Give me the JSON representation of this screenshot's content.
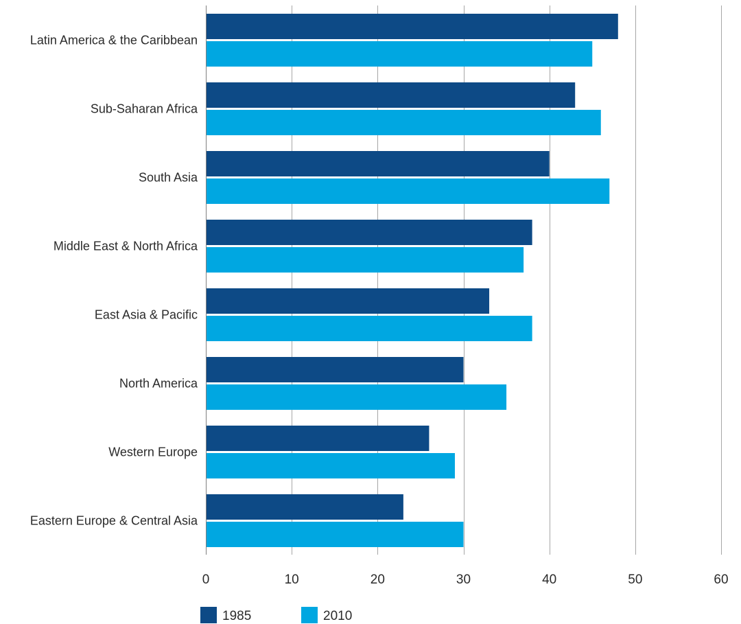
{
  "chart_data": {
    "type": "bar",
    "orientation": "horizontal",
    "categories": [
      "Latin America & the Caribbean",
      "Sub-Saharan Africa",
      "South Asia",
      "Middle East & North Africa",
      "East Asia & Pacific",
      "North America",
      "Western Europe",
      "Eastern Europe & Central Asia"
    ],
    "series": [
      {
        "name": "1985",
        "color": "#0d4a86",
        "values": [
          48,
          43,
          40,
          38,
          33,
          30,
          26,
          23
        ]
      },
      {
        "name": "2010",
        "color": "#00a7e1",
        "values": [
          45,
          46,
          47,
          37,
          38,
          35,
          29,
          30
        ]
      }
    ],
    "xlim": [
      0,
      60
    ],
    "xticks": [
      0,
      10,
      20,
      30,
      40,
      50,
      60
    ],
    "grid": "vertical",
    "legend_position": "bottom-left",
    "title": "",
    "xlabel": "",
    "ylabel": ""
  }
}
